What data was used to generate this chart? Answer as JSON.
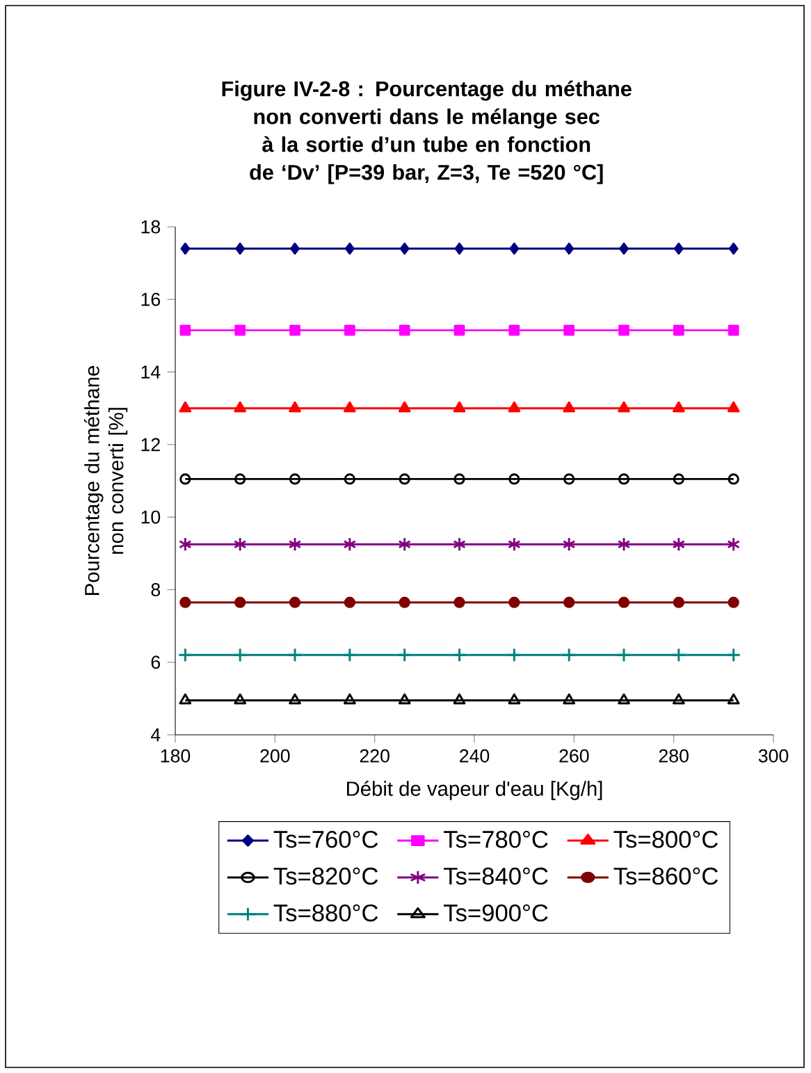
{
  "chart_data": {
    "type": "line",
    "title": "Figure IV-2-8 : Pourcentage du méthane non converti dans le mélange sec à la sortie d’un tube en fonction de ‘Dv’ [P=39 bar, Z=3, Te =520 °C]",
    "xlabel": "Débit de vapeur d'eau [Kg/h]",
    "ylabel": "Pourcentage du méthane non converti [%]",
    "x": [
      182,
      193,
      204,
      215,
      226,
      237,
      248,
      259,
      270,
      281,
      292
    ],
    "series": [
      {
        "name": "Ts=760°C",
        "color": "#000080",
        "marker": "diamond",
        "values": [
          17.4,
          17.4,
          17.4,
          17.4,
          17.4,
          17.4,
          17.4,
          17.4,
          17.4,
          17.4,
          17.4
        ]
      },
      {
        "name": "Ts=780°C",
        "color": "#ff00ff",
        "marker": "square",
        "values": [
          15.15,
          15.15,
          15.15,
          15.15,
          15.15,
          15.15,
          15.15,
          15.15,
          15.15,
          15.15,
          15.15
        ]
      },
      {
        "name": "Ts=800°C",
        "color": "#ff0000",
        "marker": "triangle",
        "values": [
          13.0,
          13.0,
          13.0,
          13.0,
          13.0,
          13.0,
          13.0,
          13.0,
          13.0,
          13.0,
          13.0
        ]
      },
      {
        "name": "Ts=820°C",
        "color": "#000000",
        "marker": "circle",
        "values": [
          11.05,
          11.05,
          11.05,
          11.05,
          11.05,
          11.05,
          11.05,
          11.05,
          11.05,
          11.05,
          11.05
        ]
      },
      {
        "name": "Ts=840°C",
        "color": "#800080",
        "marker": "cross",
        "values": [
          9.25,
          9.25,
          9.25,
          9.25,
          9.25,
          9.25,
          9.25,
          9.25,
          9.25,
          9.25,
          9.25
        ]
      },
      {
        "name": "Ts=860°C",
        "color": "#800000",
        "marker": "circle",
        "values": [
          7.65,
          7.65,
          7.65,
          7.65,
          7.65,
          7.65,
          7.65,
          7.65,
          7.65,
          7.65,
          7.65
        ]
      },
      {
        "name": "Ts=880°C",
        "color": "#008080",
        "marker": "cross",
        "values": [
          6.2,
          6.2,
          6.2,
          6.2,
          6.2,
          6.2,
          6.2,
          6.2,
          6.2,
          6.2,
          6.2
        ]
      },
      {
        "name": "Ts=900°C",
        "color": "#000000",
        "marker": "triangle",
        "values": [
          4.95,
          4.95,
          4.95,
          4.95,
          4.95,
          4.95,
          4.95,
          4.95,
          4.95,
          4.95,
          4.95
        ]
      }
    ],
    "xlim": [
      180,
      300
    ],
    "ylim": [
      4,
      18
    ],
    "xticks": [
      180,
      200,
      220,
      240,
      260,
      280,
      300
    ],
    "yticks": [
      4,
      6,
      8,
      10,
      12,
      {
        "value": 14,
        "label": "14"
      },
      16,
      18
    ],
    "grid": false,
    "legend": "bottom",
    "line_style": "solid"
  }
}
